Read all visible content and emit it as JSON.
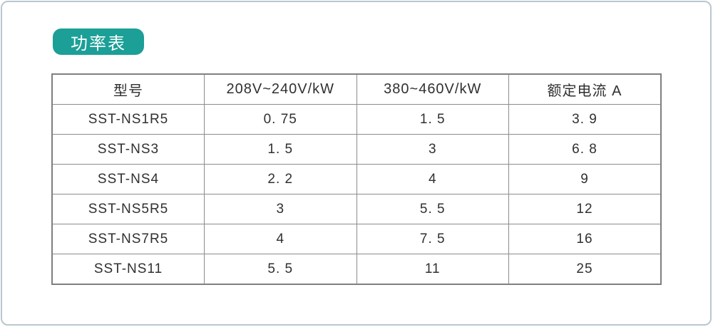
{
  "badge": {
    "label": "功率表"
  },
  "colors": {
    "accent": "#1b9f97",
    "frame_border": "#b9c7ce",
    "table_border": "#8c8c8c",
    "text": "#303030"
  },
  "table": {
    "headers": [
      "型号",
      "208V~240V/kW",
      "380~460V/kW",
      "额定电流 A"
    ],
    "rows": [
      [
        "SST-NS1R5",
        "0. 75",
        "1. 5",
        "3. 9"
      ],
      [
        "SST-NS3",
        "1. 5",
        "3",
        "6. 8"
      ],
      [
        "SST-NS4",
        "2. 2",
        "4",
        "9"
      ],
      [
        "SST-NS5R5",
        "3",
        "5. 5",
        "12"
      ],
      [
        "SST-NS7R5",
        "4",
        "7. 5",
        "16"
      ],
      [
        "SST-NS11",
        "5. 5",
        "11",
        "25"
      ]
    ]
  },
  "chart_data": {
    "type": "table",
    "title": "功率表",
    "columns": [
      "型号",
      "208V~240V/kW",
      "380~460V/kW",
      "额定电流 A"
    ],
    "rows": [
      [
        "SST-NS1R5",
        "0.75",
        "1.5",
        "3.9"
      ],
      [
        "SST-NS3",
        "1.5",
        "3",
        "6.8"
      ],
      [
        "SST-NS4",
        "2.2",
        "4",
        "9"
      ],
      [
        "SST-NS5R5",
        "3",
        "5.5",
        "12"
      ],
      [
        "SST-NS7R5",
        "4",
        "7.5",
        "16"
      ],
      [
        "SST-NS11",
        "5.5",
        "11",
        "25"
      ]
    ]
  }
}
